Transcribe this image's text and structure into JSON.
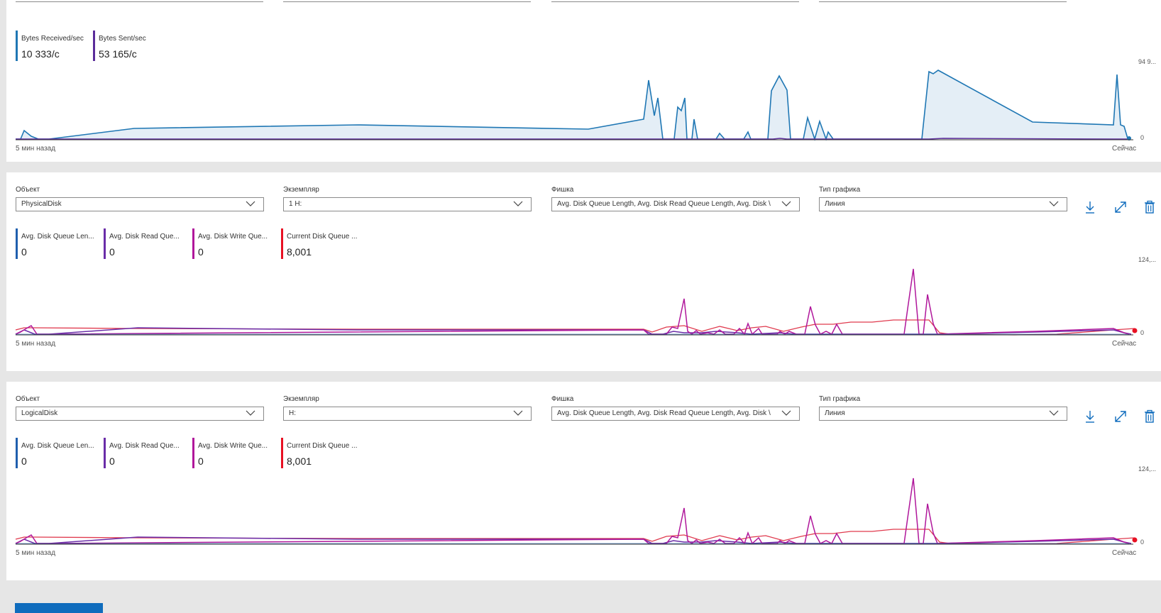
{
  "network_panel": {
    "legend": [
      {
        "name": "Bytes Received/sec",
        "value": "10 333/с",
        "color": "#1f77b4"
      },
      {
        "name": "Bytes Sent/sec",
        "value": "53 165/с",
        "color": "#5b2c9a"
      }
    ],
    "y_max_label": "94 9...",
    "y_min_label": "0",
    "x_start_label": "5 мин назад",
    "x_end_label": "Сейчас"
  },
  "physical_panel": {
    "object_label": "Объект",
    "object_value": "PhysicalDisk",
    "instance_label": "Экземпляр",
    "instance_value": "1 H:",
    "counter_label": "Фишка",
    "counter_value": "Avg. Disk Queue Length, Avg. Disk Read Queue Length, Avg. Disk \\",
    "chart_type_label": "Тип графика",
    "chart_type_value": "Линия",
    "legend": [
      {
        "name": "Avg. Disk Queue Len...",
        "value": "0",
        "color": "#1f5fae"
      },
      {
        "name": "Avg. Disk Read Que...",
        "value": "0",
        "color": "#6a2da8"
      },
      {
        "name": "Avg. Disk Write Que...",
        "value": "0",
        "color": "#b0179b"
      },
      {
        "name": "Current Disk Queue ...",
        "value": "8,001",
        "color": "#e81123"
      }
    ],
    "y_max_label": "124,...",
    "y_min_label": "0",
    "x_start_label": "5 мин назад",
    "x_end_label": "Сейчас"
  },
  "logical_panel": {
    "object_label": "Объект",
    "object_value": "LogicalDisk",
    "instance_label": "Экземпляр",
    "instance_value": "H:",
    "counter_label": "Фишка",
    "counter_value": "Avg. Disk Queue Length, Avg. Disk Read Queue Length, Avg. Disk \\",
    "chart_type_label": "Тип графика",
    "chart_type_value": "Линия",
    "legend": [
      {
        "name": "Avg. Disk Queue Len...",
        "value": "0",
        "color": "#1f5fae"
      },
      {
        "name": "Avg. Disk Read Que...",
        "value": "0",
        "color": "#6a2da8"
      },
      {
        "name": "Avg. Disk Write Que...",
        "value": "0",
        "color": "#b0179b"
      },
      {
        "name": "Current Disk Queue ...",
        "value": "8,001",
        "color": "#e81123"
      }
    ],
    "y_max_label": "124,...",
    "y_min_label": "0",
    "x_start_label": "5 мин назад",
    "x_end_label": "Сейчас"
  },
  "icons": {
    "download": "download-icon",
    "expand": "expand-icon",
    "delete": "trash-icon"
  },
  "accent_color": "#0f6cbd"
}
